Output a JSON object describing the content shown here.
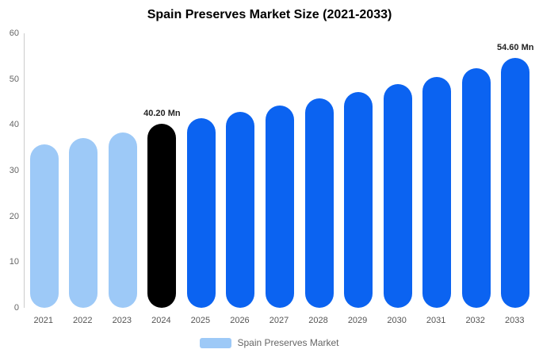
{
  "chart_data": {
    "type": "bar",
    "title": "Spain Preserves Market Size (2021-2033)",
    "categories": [
      "2021",
      "2022",
      "2023",
      "2024",
      "2025",
      "2026",
      "2027",
      "2028",
      "2029",
      "2030",
      "2031",
      "2032",
      "2033"
    ],
    "values": [
      35.8,
      37.1,
      38.4,
      40.2,
      41.4,
      42.8,
      44.2,
      45.7,
      47.2,
      48.9,
      50.5,
      52.4,
      54.6
    ],
    "unit": "Mn",
    "ylim": [
      0,
      60
    ],
    "yticks": [
      0,
      10,
      20,
      30,
      40,
      50,
      60
    ],
    "grid": false,
    "bar_colors": [
      "#9DC9F7",
      "#9DC9F7",
      "#9DC9F7",
      "#000000",
      "#0B63F1",
      "#0B63F1",
      "#0B63F1",
      "#0B63F1",
      "#0B63F1",
      "#0B63F1",
      "#0B63F1",
      "#0B63F1",
      "#0B63F1"
    ],
    "annotations": [
      {
        "category": "2024",
        "text": "40.20 Mn"
      },
      {
        "category": "2033",
        "text": "54.60 Mn"
      }
    ],
    "legend": {
      "label": "Spain Preserves Market",
      "position": "bottom",
      "swatch_color": "#9DC9F7"
    }
  }
}
